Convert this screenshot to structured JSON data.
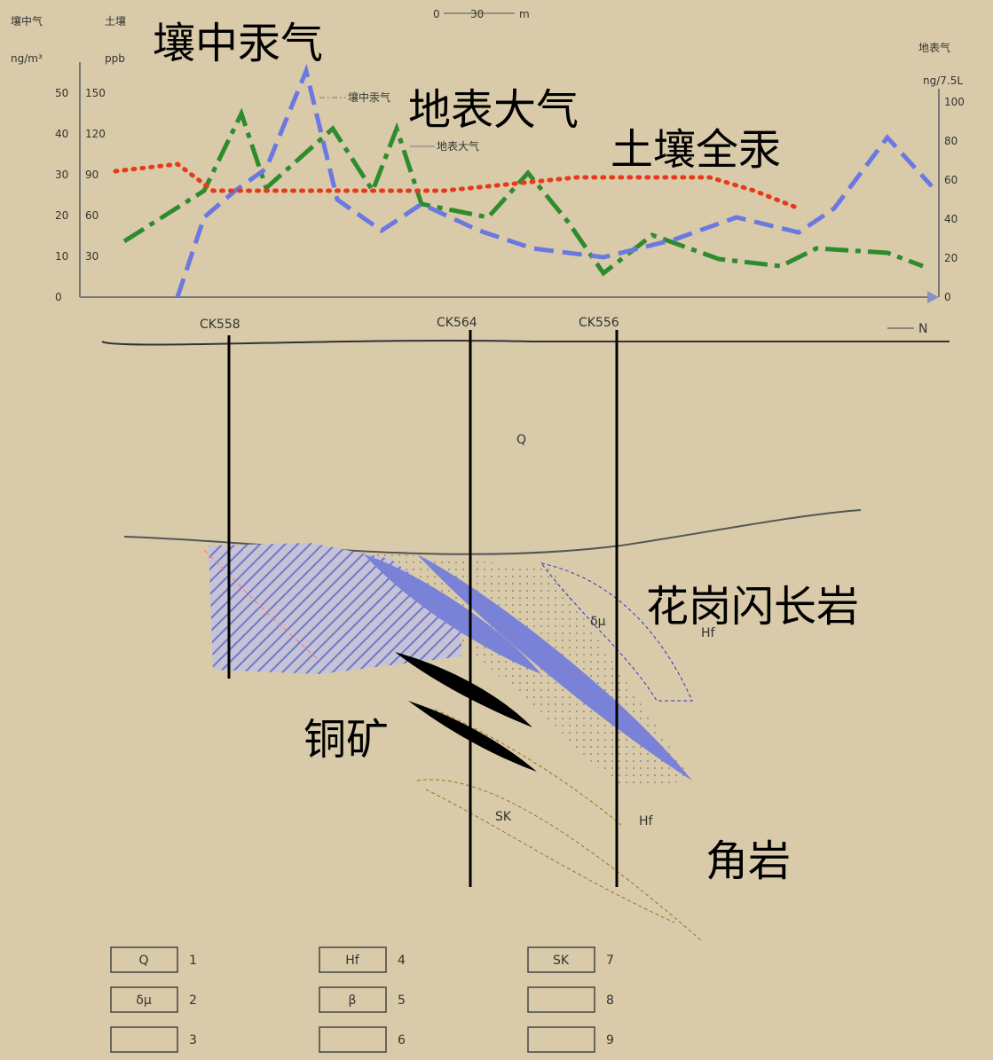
{
  "labels": {
    "soil_gas": "壤中汞气",
    "atmosphere": "地表大气",
    "soil_mercury": "土壤全汞",
    "granodiorite": "花岗闪长岩",
    "copper_ore": "铜矿",
    "hornfels": "角岩"
  },
  "chart": {
    "left_title": "壤中气",
    "left_unit": "ng/m³",
    "left_ticks": [
      "50",
      "40",
      "30",
      "20",
      "10",
      "0"
    ],
    "mid_title": "土壤",
    "mid_unit": "ppb",
    "mid_ticks": [
      "150",
      "120",
      "90",
      "60",
      "30"
    ],
    "right_title": "地表气",
    "right_unit": "ng/7.5L",
    "right_ticks": [
      "100",
      "80",
      "60",
      "40",
      "20",
      "0"
    ],
    "legend": [
      "壤中汞气",
      "地表大气"
    ],
    "scale": [
      "0",
      "30",
      "m"
    ]
  },
  "section": {
    "boreholes": [
      "CK558",
      "CK564",
      "CK556"
    ],
    "north": "N",
    "units": [
      "Q",
      "δμ",
      "Hf",
      "Hf",
      "SK"
    ]
  },
  "legend": [
    {
      "symbol": "Q",
      "number": "1"
    },
    {
      "symbol": "δμ",
      "number": "2"
    },
    {
      "symbol": "",
      "number": "3"
    },
    {
      "symbol": "Hf",
      "number": "4"
    },
    {
      "symbol": "β",
      "number": "5"
    },
    {
      "symbol": "",
      "number": "6"
    },
    {
      "symbol": "SK",
      "number": "7"
    },
    {
      "symbol": "",
      "number": "8"
    },
    {
      "symbol": "",
      "number": "9"
    }
  ]
}
